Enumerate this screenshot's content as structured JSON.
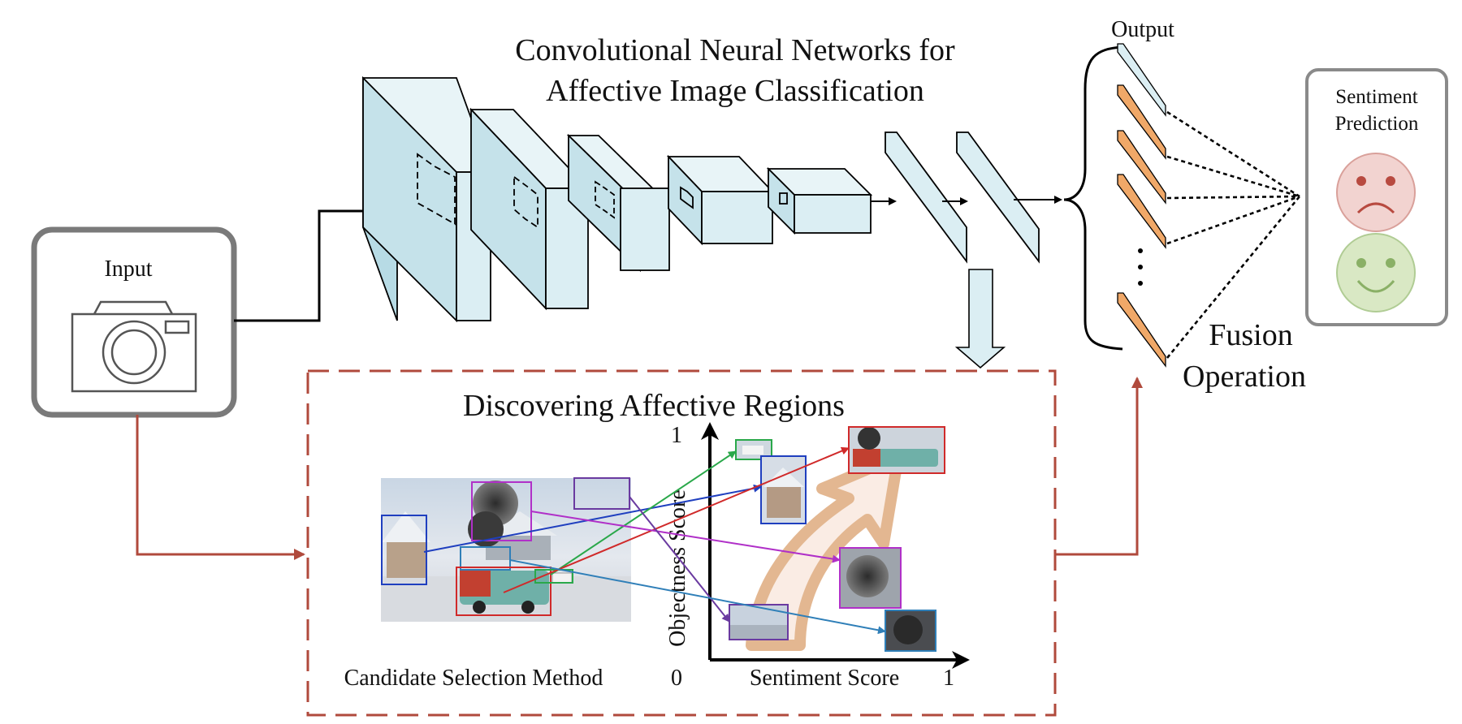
{
  "cnn": {
    "title_line1": "Convolutional Neural Networks for",
    "title_line2": "Affective Image Classification"
  },
  "input": {
    "label": "Input"
  },
  "output": {
    "label": "Output"
  },
  "sentiment": {
    "label_line1": "Sentiment",
    "label_line2": "Prediction",
    "negative_color": "#f2d3d0",
    "positive_color": "#d9e8c4"
  },
  "fusion": {
    "label_line1": "Fusion",
    "label_line2": "Operation"
  },
  "regions": {
    "title": "Discovering Affective Regions",
    "candidate_label": "Candidate Selection Method",
    "y_axis_label": "Objectness Score",
    "x_axis_label": "Sentiment Score",
    "origin_label": "0",
    "y_max_label": "1",
    "x_max_label": "1"
  },
  "colors": {
    "layer_fill": "#dbeef3",
    "output_orange": "#f0a868",
    "dashed_box": "#b04a3c",
    "flow_arrow": "#b04a3c"
  }
}
